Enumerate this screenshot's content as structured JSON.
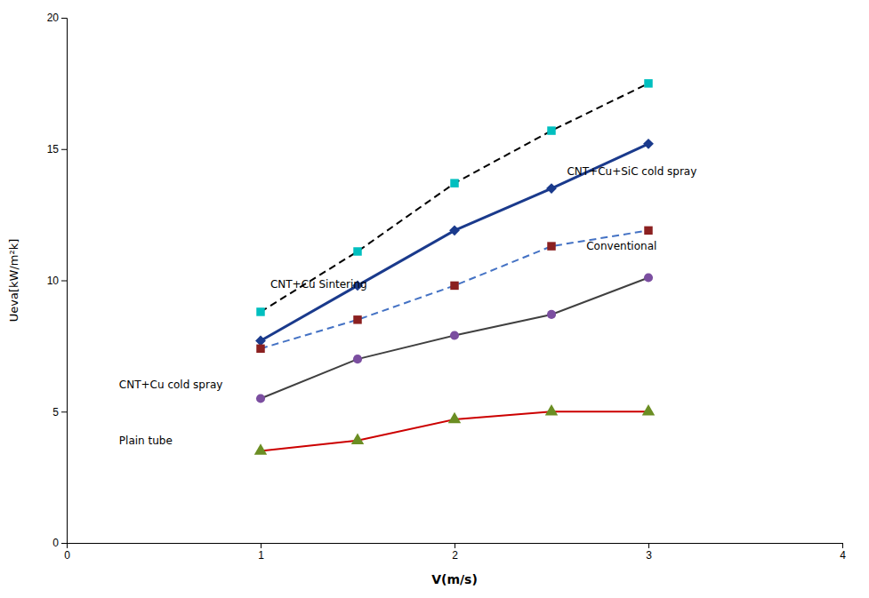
{
  "chart_data": {
    "type": "line",
    "xlabel": "V(m/s)",
    "ylabel": "Ueva[kW/m²k]",
    "x": [
      1.0,
      1.5,
      2.0,
      2.5,
      3.0
    ],
    "series": [
      {
        "color": "#000000",
        "line_style": "dashed",
        "marker": "square",
        "colors": [
          "#00BFBF",
          "#00BFBF",
          "#00BFBF",
          "#00BFBF",
          "#00BFBF"
        ],
        "values": [
          8.8,
          11.1,
          13.7,
          15.7,
          17.5
        ]
      },
      {
        "color": "#1A3A8C",
        "line_style": "solid",
        "marker": "diamond",
        "colors": [
          "#1A3A8C",
          "#1A3A8C",
          "#1A3A8C",
          "#1A3A8C",
          "#1A3A8C"
        ],
        "values": [
          7.7,
          9.8,
          11.9,
          13.5,
          15.2
        ]
      },
      {
        "color": "#4472C4",
        "line_style": "dashed",
        "marker": "square",
        "colors": [
          "#8B2020",
          "#8B2020",
          "#8B2020",
          "#8B2020",
          "#8B2020"
        ],
        "values": [
          7.4,
          8.5,
          9.8,
          11.3,
          11.9
        ]
      },
      {
        "color": "#404040",
        "line_style": "solid",
        "marker": "circle",
        "colors": [
          "#7B4EA0",
          "#7B4EA0",
          "#7B4EA0",
          "#7B4EA0",
          "#7B4EA0"
        ],
        "values": [
          5.5,
          7.0,
          7.9,
          8.7,
          10.1
        ]
      },
      {
        "color": "#CC0000",
        "line_style": "solid",
        "marker": "triangle",
        "colors": [
          "#6B8E23",
          "#6B8E23",
          "#6B8E23",
          "#6B8E23",
          "#6B8E23"
        ],
        "values": [
          3.5,
          3.9,
          4.7,
          5.0,
          5.0
        ]
      }
    ],
    "annotations": [
      {
        "text": "CNT+Cu Sintering",
        "x": 1.05,
        "y": 9.6
      },
      {
        "text": "CNT+Cu+SiC cold spray",
        "x": 2.58,
        "y": 13.9
      },
      {
        "text": "Conventional",
        "x": 2.68,
        "y": 11.05
      },
      {
        "text": "CNT+Cu cold spray",
        "x": 0.27,
        "y": 5.8
      },
      {
        "text": "Plain tube",
        "x": 0.27,
        "y": 3.65
      }
    ],
    "xlim": [
      0,
      4
    ],
    "ylim": [
      0,
      20
    ],
    "xticks": [
      0,
      1,
      2,
      3,
      4
    ],
    "yticks": [
      0,
      5,
      10,
      15,
      20
    ],
    "grid": false
  }
}
